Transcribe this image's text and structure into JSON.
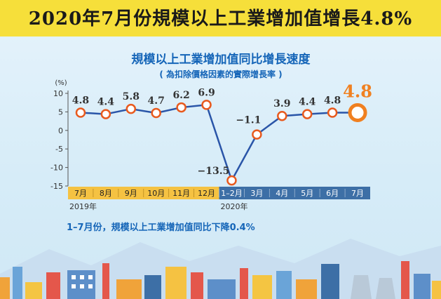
{
  "headline": "2020年7月份規模以上工業增加值增長4.8%",
  "chart_title": "規模以上工業增加值同比增長速度",
  "chart_subtitle": "( 為扣除價格因素的實際增長率 )",
  "footnote": "1–7月份，規模以上工業增加值同比下降0.4%",
  "colors": {
    "banner": "#f6df3a",
    "title_blue": "#1565b8",
    "line": "#2a55a8",
    "marker": "#e85a1e",
    "highlight": "#f08020",
    "axis_band_2019": "#f5c242",
    "axis_band_2020": "#3d6fa6"
  },
  "chart_data": {
    "type": "line",
    "y_unit_label": "(%)",
    "ylim": [
      -15,
      10
    ],
    "y_ticks": [
      "10",
      "5",
      "0",
      "-5",
      "-10",
      "-15"
    ],
    "categories": [
      "7月",
      "8月",
      "9月",
      "10月",
      "11月",
      "12月",
      "1–2月",
      "3月",
      "4月",
      "5月",
      "6月",
      "7月"
    ],
    "values": [
      4.8,
      4.4,
      5.8,
      4.7,
      6.2,
      6.9,
      -13.5,
      -1.1,
      3.9,
      4.4,
      4.8,
      4.8
    ],
    "value_labels": [
      "4.8",
      "4.4",
      "5.8",
      "4.7",
      "6.2",
      "6.9",
      "−13.5",
      "−1.1",
      "3.9",
      "4.4",
      "4.8",
      "4.8"
    ],
    "year_labels": [
      {
        "label": "2019年",
        "first_index": 0
      },
      {
        "label": "2020年",
        "first_index": 6
      }
    ],
    "highlight_index": 11,
    "grid": false
  }
}
